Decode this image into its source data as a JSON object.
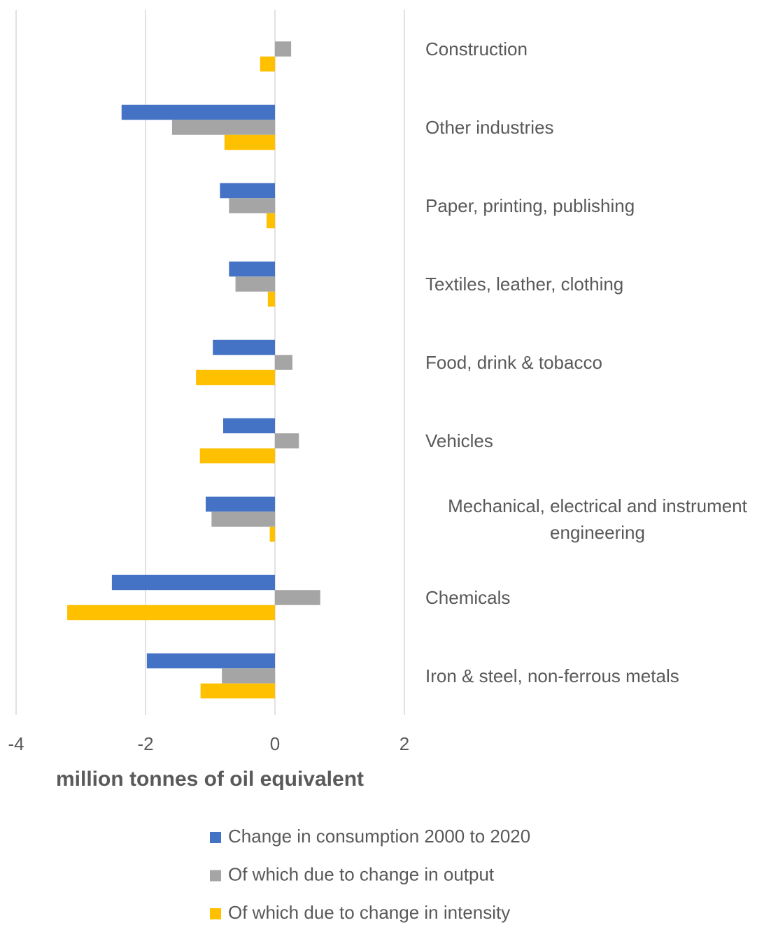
{
  "chart_data": {
    "type": "hbar",
    "categories": [
      "Construction",
      "Other industries",
      "Paper, printing, publishing",
      "Textiles, leather, clothing",
      "Food, drink & tobacco",
      "Vehicles",
      "Mechanical, electrical and instrument engineering",
      "Chemicals",
      "Iron & steel, non-ferrous metals"
    ],
    "series": [
      {
        "name": "Change in consumption 2000 to 2020",
        "color": "#4472c4",
        "values": [
          null,
          -2.37,
          -0.85,
          -0.71,
          -0.96,
          -0.8,
          -1.07,
          -2.52,
          -1.98
        ]
      },
      {
        "name": "Of which due to change in output",
        "color": "#a5a5a5",
        "values": [
          0.25,
          -1.59,
          -0.71,
          -0.61,
          0.27,
          0.37,
          -0.98,
          0.7,
          -0.82
        ]
      },
      {
        "name": "Of which due to change in intensity",
        "color": "#ffc000",
        "values": [
          -0.23,
          -0.78,
          -0.13,
          -0.11,
          -1.22,
          -1.16,
          -0.08,
          -3.21,
          -1.15
        ]
      }
    ],
    "xlabel": "million tonnes of oil equivalent",
    "xlim": [
      -4,
      2
    ],
    "xticks": [
      -4,
      -2,
      0,
      2
    ],
    "grid": true,
    "legend": "bottom"
  }
}
